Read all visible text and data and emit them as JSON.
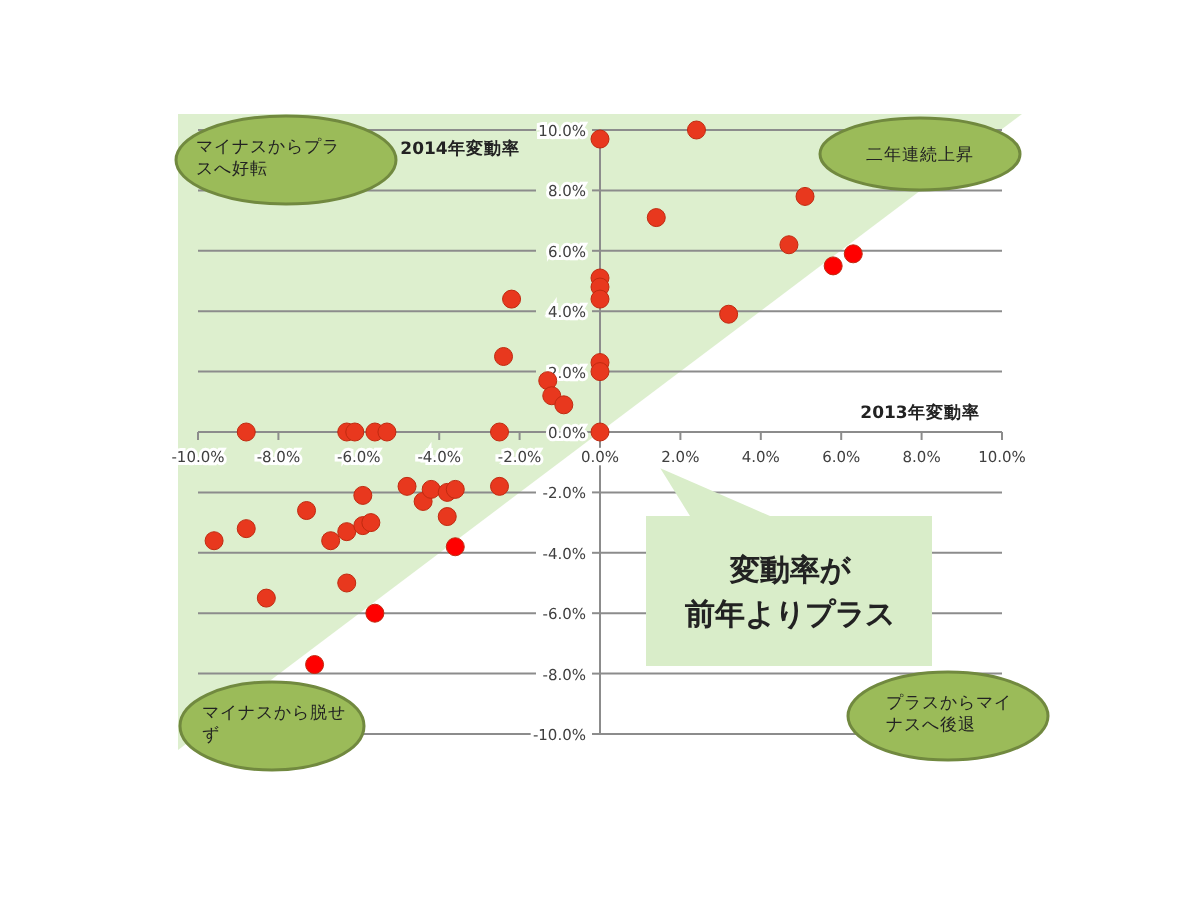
{
  "chart_data": {
    "type": "scatter",
    "xlabel": "2013年変動率",
    "ylabel": "2014年変動率",
    "xlim": [
      -10,
      10
    ],
    "ylim": [
      -10,
      10
    ],
    "xticks": [
      {
        "value": -10,
        "label": "-10.0%"
      },
      {
        "value": -8,
        "label": "-8.0%"
      },
      {
        "value": -6,
        "label": "-6.0%"
      },
      {
        "value": -4,
        "label": "-4.0%"
      },
      {
        "value": -2,
        "label": "-2.0%"
      },
      {
        "value": 0,
        "label": "0.0%"
      },
      {
        "value": 2,
        "label": "2.0%"
      },
      {
        "value": 4,
        "label": "4.0%"
      },
      {
        "value": 6,
        "label": "6.0%"
      },
      {
        "value": 8,
        "label": "8.0%"
      },
      {
        "value": 10,
        "label": "10.0%"
      }
    ],
    "yticks": [
      {
        "value": -10,
        "label": "-10.0%"
      },
      {
        "value": -8,
        "label": "-8.0%"
      },
      {
        "value": -6,
        "label": "-6.0%"
      },
      {
        "value": -4,
        "label": "-4.0%"
      },
      {
        "value": -2,
        "label": "-2.0%"
      },
      {
        "value": 0,
        "label": "0.0%"
      },
      {
        "value": 2,
        "label": "2.0%"
      },
      {
        "value": 4,
        "label": "4.0%"
      },
      {
        "value": 6,
        "label": "6.0%"
      },
      {
        "value": 8,
        "label": "8.0%"
      },
      {
        "value": 10,
        "label": "10.0%"
      }
    ],
    "grid": "y",
    "marker": "circle",
    "series": [
      {
        "color": "#e8381e",
        "x": [
          0,
          0,
          0,
          0,
          -2.2,
          -2.4,
          0,
          0,
          -1.3,
          -1.2,
          -0.9,
          -8.8,
          -6.3,
          -6.1,
          -5.6,
          -5.3,
          -2.5,
          0,
          2.4,
          5.1,
          1.4,
          4.7,
          3.2,
          -9.6,
          -8.8,
          -8.3,
          -7.3,
          -6.7,
          -6.3,
          -6.3,
          -5.9,
          -5.9,
          -5.7,
          -4.8,
          -4.4,
          -4.2,
          -3.8,
          -3.6,
          -3.8,
          -2.5
        ],
        "values": [
          9.7,
          5.1,
          4.8,
          4.4,
          4.4,
          2.5,
          2.3,
          2.0,
          1.7,
          1.2,
          0.9,
          0,
          0,
          0,
          0,
          0,
          0,
          0,
          10.0,
          7.8,
          7.1,
          6.2,
          3.9,
          -3.6,
          -3.2,
          -5.5,
          -2.6,
          -3.6,
          -3.3,
          -5.0,
          -2.1,
          -3.1,
          -3.0,
          -1.8,
          -2.3,
          -1.9,
          -2.0,
          -1.9,
          -2.8,
          -1.8
        ]
      },
      {
        "color": "#ff0000",
        "x": [
          6.3,
          5.8,
          -3.6,
          -5.6,
          -7.1
        ],
        "values": [
          5.9,
          5.5,
          -3.8,
          -6.0,
          -7.7
        ]
      }
    ],
    "annotations": [
      "マイナスからプラスへ好転",
      "二年連続上昇",
      "マイナスから脱せず",
      "プラスからマイナスへ後退",
      "変動率が前年よりプラス"
    ]
  }
}
